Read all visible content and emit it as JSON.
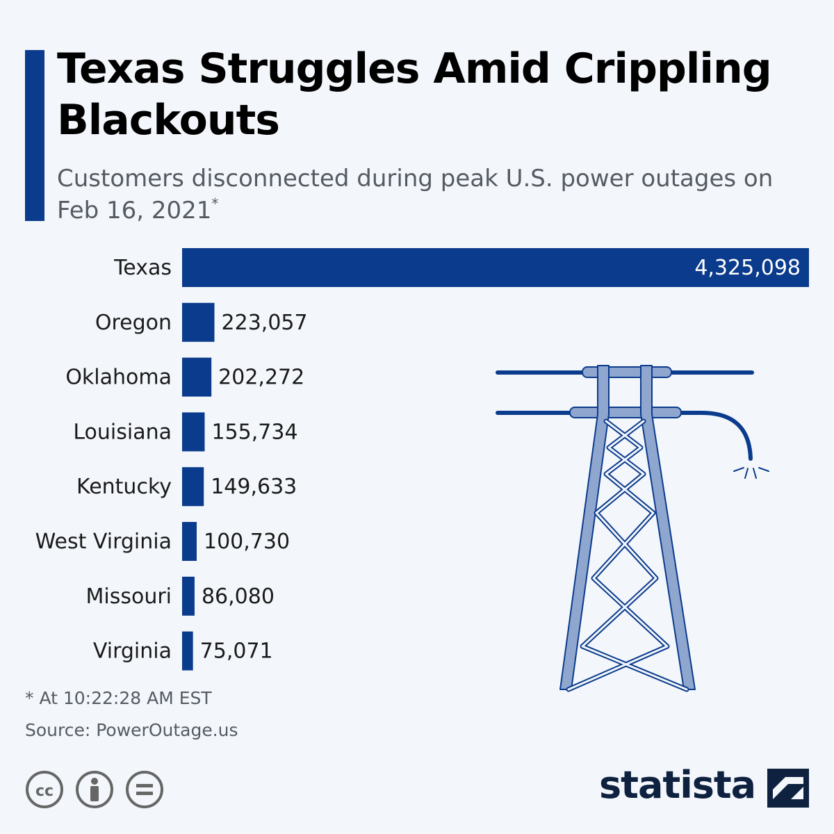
{
  "header": {
    "title": "Texas Struggles Amid Crippling Blackouts",
    "subtitle": "Customers disconnected during peak U.S. power outages on Feb 16, 2021",
    "subtitle_mark": "*"
  },
  "chart_data": {
    "type": "bar",
    "orientation": "horizontal",
    "title": "Texas Struggles Amid Crippling Blackouts",
    "subtitle": "Customers disconnected during peak U.S. power outages on Feb 16, 2021*",
    "categories": [
      "Texas",
      "Oregon",
      "Oklahoma",
      "Louisiana",
      "Kentucky",
      "West Virginia",
      "Missouri",
      "Virginia"
    ],
    "values": [
      4325098,
      223057,
      202272,
      155734,
      149633,
      100730,
      86080,
      75071
    ],
    "value_labels": [
      "4,325,098",
      "223,057",
      "202,272",
      "155,734",
      "149,633",
      "100,730",
      "86,080",
      "75,071"
    ],
    "xlabel": "",
    "ylabel": "",
    "bar_color": "#0b3b8c",
    "grid": false,
    "legend": "none"
  },
  "footer": {
    "footnote": "* At 10:22:28 AM EST",
    "source": "Source: PowerOutage.us",
    "license_icons": [
      "cc-icon",
      "attribution-icon",
      "no-derivatives-icon"
    ],
    "brand": "statista"
  },
  "colors": {
    "accent": "#0b3b8c",
    "background": "#f3f6fb",
    "muted_text": "#555b63",
    "brand_text": "#0e2240",
    "illustration_fill": "#8fa6cf"
  },
  "illustration": "power-tower-icon"
}
